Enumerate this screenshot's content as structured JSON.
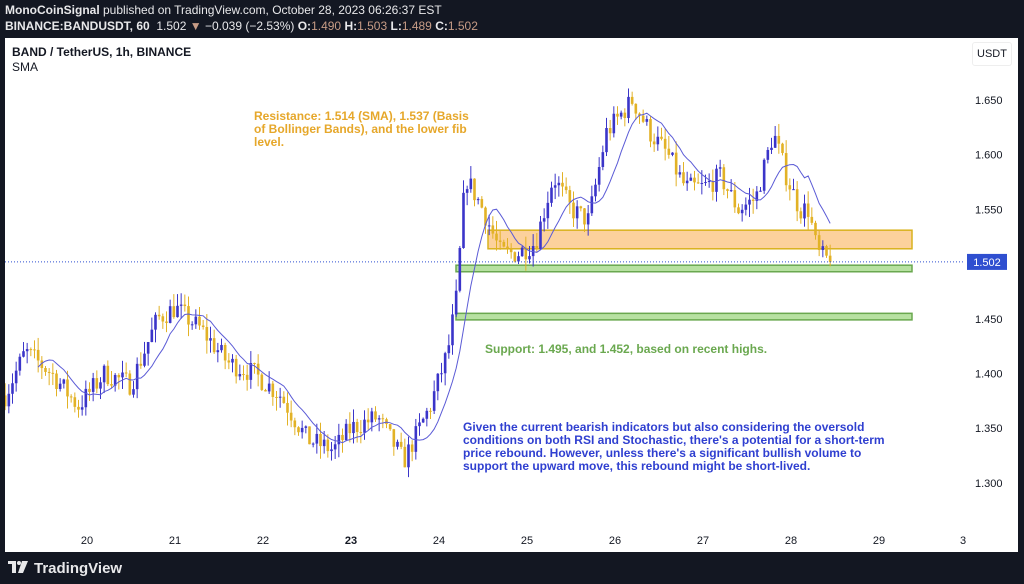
{
  "header": {
    "author": "MonoCoinSignal",
    "published": "published on TradingView.com, October 28, 2023 06:26:37 EST",
    "symbol": "BINANCE:BANDUSDT, 60",
    "last": "1.502",
    "change": "−0.039 (−2.53%)",
    "o_label": "O:",
    "o": "1.490",
    "h_label": "H:",
    "h": "1.503",
    "l_label": "L:",
    "l": "1.489",
    "c_label": "C:",
    "c": "1.502"
  },
  "chart": {
    "title": "BAND / TetherUS, 1h, BINANCE",
    "indicator": "SMA",
    "currency": "USDT",
    "last_price_label": "1.502"
  },
  "annotations": {
    "resistance": "Resistance: 1.514 (SMA), 1.537 (Basis of Bollinger Bands), and the lower fib level.",
    "support": "Support: 1.495, and 1.452, based on recent highs.",
    "outlook": "Given the current bearish indicators but also considering the oversold conditions on both RSI and Stochastic, there's a potential for a short-term price rebound. However, unless there's a significant bullish volume to support the upward move, this rebound might be short-lived."
  },
  "footer": {
    "brand": "TradingView"
  },
  "colors": {
    "up": "#3b35c9",
    "down": "#e2b226",
    "sma": "#5b5bd6",
    "resistance_zone": "#fcd19c",
    "support_zone": "#b7e1a1",
    "last_price": "#2f4fd0"
  },
  "chart_data": {
    "type": "candlestick",
    "interval": "1h",
    "y_ticks": [
      "1.650",
      "1.600",
      "1.550",
      "1.450",
      "1.400",
      "1.350",
      "1.300"
    ],
    "x_ticks": [
      "20",
      "21",
      "22",
      "23",
      "24",
      "25",
      "26",
      "27",
      "28",
      "29",
      "3"
    ],
    "approx_close_path": [
      [
        19.07,
        1.38
      ],
      [
        19.3,
        1.42
      ],
      [
        19.6,
        1.4
      ],
      [
        19.9,
        1.37
      ],
      [
        20.2,
        1.4
      ],
      [
        20.5,
        1.39
      ],
      [
        20.8,
        1.45
      ],
      [
        21.0,
        1.46
      ],
      [
        21.3,
        1.44
      ],
      [
        21.6,
        1.41
      ],
      [
        21.9,
        1.4
      ],
      [
        22.2,
        1.38
      ],
      [
        22.5,
        1.34
      ],
      [
        22.8,
        1.33
      ],
      [
        23.0,
        1.35
      ],
      [
        23.3,
        1.36
      ],
      [
        23.6,
        1.32
      ],
      [
        23.9,
        1.37
      ],
      [
        24.1,
        1.42
      ],
      [
        24.2,
        1.47
      ],
      [
        24.3,
        1.58
      ],
      [
        24.5,
        1.55
      ],
      [
        24.7,
        1.51
      ],
      [
        24.9,
        1.51
      ],
      [
        25.1,
        1.52
      ],
      [
        25.3,
        1.58
      ],
      [
        25.5,
        1.55
      ],
      [
        25.7,
        1.54
      ],
      [
        25.9,
        1.62
      ],
      [
        26.2,
        1.65
      ],
      [
        26.4,
        1.62
      ],
      [
        26.6,
        1.6
      ],
      [
        26.8,
        1.57
      ],
      [
        27.0,
        1.57
      ],
      [
        27.2,
        1.58
      ],
      [
        27.4,
        1.55
      ],
      [
        27.6,
        1.56
      ],
      [
        27.8,
        1.62
      ],
      [
        27.95,
        1.58
      ],
      [
        28.1,
        1.55
      ],
      [
        28.2,
        1.55
      ],
      [
        28.3,
        1.51
      ],
      [
        28.45,
        1.502
      ]
    ],
    "zones": [
      {
        "name": "resistance",
        "low": 1.514,
        "high": 1.531
      },
      {
        "name": "support",
        "low": 1.493,
        "high": 1.499
      },
      {
        "name": "support",
        "low": 1.449,
        "high": 1.455
      }
    ],
    "last_price": 1.502
  }
}
